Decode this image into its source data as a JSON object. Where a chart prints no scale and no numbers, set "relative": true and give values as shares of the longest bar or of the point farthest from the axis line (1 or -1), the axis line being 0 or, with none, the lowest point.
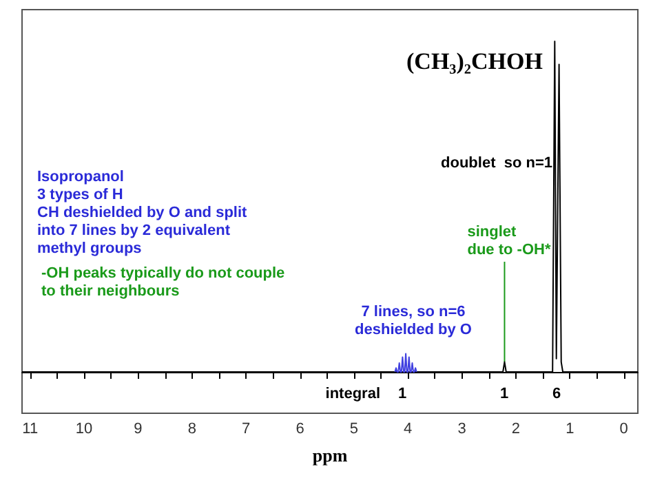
{
  "chart_data": {
    "type": "line",
    "title": "(CH₃)₂CHOH",
    "xlabel": "ppm",
    "relative": true,
    "xlim": [
      11.15,
      -0.26
    ],
    "xticks": [
      11,
      {
        "value": 10.5,
        "label": null
      },
      10,
      {
        "value": 9.5,
        "label": null
      },
      9,
      {
        "value": 8.5,
        "label": null
      },
      8,
      {
        "value": 7.5,
        "label": null
      },
      7,
      {
        "value": 6.5,
        "label": null
      },
      6,
      {
        "value": 5.5,
        "label": null
      },
      5,
      {
        "value": 4.5,
        "label": null
      },
      4,
      {
        "value": 3.5,
        "label": null
      },
      3,
      {
        "value": 2.5,
        "label": null
      },
      2,
      {
        "value": 1.5,
        "label": null
      },
      1,
      {
        "value": 0.5,
        "label": null
      },
      0
    ],
    "series": [
      {
        "color": "#000000",
        "x": [
          11.15,
          2.24,
          2.21,
          2.18,
          1.32,
          1.28,
          1.25,
          1.24,
          1.2,
          1.16,
          1.13,
          -0.26
        ],
        "values": [
          0,
          0,
          0.03,
          0,
          0,
          1,
          0.04,
          0.04,
          0.93,
          0.03,
          0,
          0
        ]
      },
      {
        "color": "#4040e0",
        "x": [
          3.84,
          3.86,
          3.88,
          3.9,
          3.92,
          3.94,
          3.96,
          3.98,
          4.0,
          4.02,
          4.04,
          4.06,
          4.08,
          4.1,
          4.12,
          4.14,
          4.16,
          4.18,
          4.2,
          4.22,
          4.24
        ],
        "values": [
          0,
          0.012,
          0,
          0,
          0.027,
          0,
          0,
          0.045,
          0,
          0,
          0.055,
          0,
          0,
          0.045,
          0,
          0,
          0.027,
          0,
          0,
          0.012,
          0
        ]
      }
    ],
    "annotations": [
      "Isopropanol\n3 types of H\nCH deshielded by O and split\ninto 7 lines by 2 equivalent\nmethyl groups",
      "-OH peaks typically do not couple\nto their neighbours",
      "7 lines, so n=6\ndeshielded by O",
      {
        "text": "singlet\ndue to -OH*",
        "x": 2.21,
        "y": 0.03
      },
      "doublet  so n=1",
      "integral",
      "1",
      "1",
      "6"
    ],
    "grid": false,
    "marker": "none",
    "line_style": "solid"
  }
}
